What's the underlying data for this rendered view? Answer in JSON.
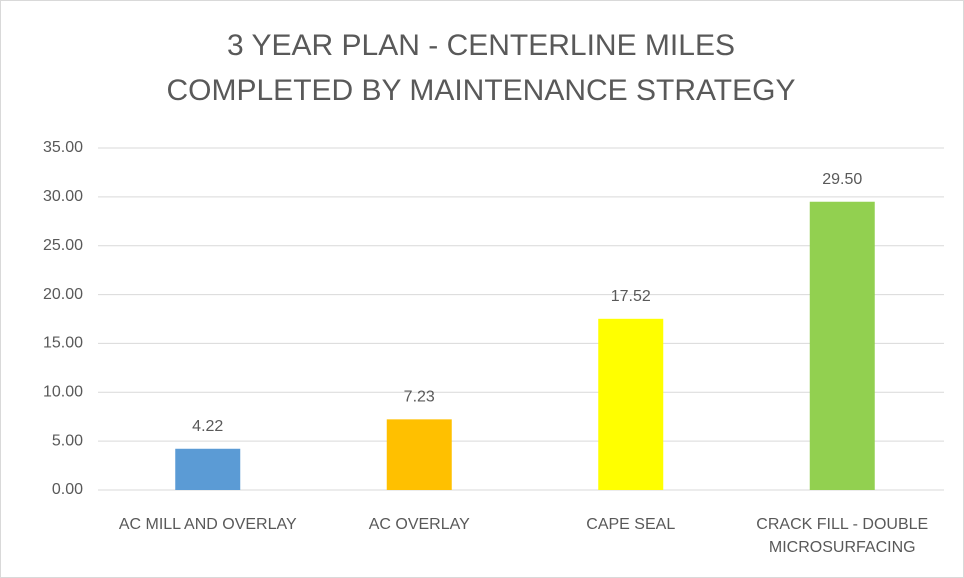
{
  "chart_data": {
    "type": "bar",
    "title": "3 YEAR PLAN - CENTERLINE MILES COMPLETED BY MAINTENANCE STRATEGY",
    "categories": [
      "AC MILL AND OVERLAY",
      "AC OVERLAY",
      "CAPE SEAL",
      "CRACK FILL - DOUBLE MICROSURFACING"
    ],
    "values": [
      4.22,
      7.23,
      17.52,
      29.5
    ],
    "value_labels": [
      "4.22",
      "7.23",
      "17.52",
      "29.50"
    ],
    "colors": [
      "#5b9bd5",
      "#ffc000",
      "#ffff00",
      "#92d050"
    ],
    "ylim": [
      0,
      35
    ],
    "yticks": [
      {
        "value": 0,
        "label": "0.00"
      },
      {
        "value": 5,
        "label": "5.00"
      },
      {
        "value": 10,
        "label": "10.00"
      },
      {
        "value": 15,
        "label": "15.00"
      },
      {
        "value": 20,
        "label": "20.00"
      },
      {
        "value": 25,
        "label": "25.00"
      },
      {
        "value": 30,
        "label": "30.00"
      },
      {
        "value": 35,
        "label": "35.00"
      }
    ],
    "grid": true
  }
}
